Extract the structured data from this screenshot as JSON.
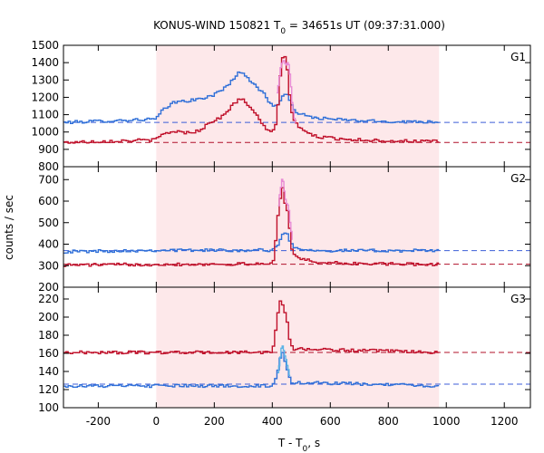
{
  "figure": {
    "title_main": "KONUS-WIND 150821 T",
    "title_sub": "0",
    "title_rest": " = 34651s UT (09:37:31.000)",
    "xlabel_main": "T - T",
    "xlabel_sub": "0",
    "xlabel_rest": ", s",
    "ylabel": "counts / sec"
  },
  "colors": {
    "highlight": "#fde8ea",
    "blue": "#2f6fd8",
    "red": "#c0102a",
    "cyan": "#5ab4e6",
    "pink": "#e88ad4",
    "dashed_blue": "#3c5ed8",
    "dashed_red": "#b0102a"
  },
  "chart_data": [
    {
      "type": "line",
      "panel": "G1",
      "x_range": [
        -320,
        1290
      ],
      "xticks": [
        -200,
        0,
        200,
        400,
        600,
        800,
        1000,
        1200
      ],
      "ylim": [
        800,
        1500
      ],
      "yticks": [
        800,
        900,
        1000,
        1100,
        1200,
        1300,
        1400,
        1500
      ],
      "highlight_interval": [
        0,
        975
      ],
      "grid": false,
      "background_levels": [
        {
          "color": "blue",
          "value": 1055
        },
        {
          "color": "red",
          "value": 940
        }
      ],
      "series": [
        {
          "color": "blue",
          "style": "step",
          "bin": 8,
          "x_start": -320,
          "x_end": 975,
          "anchors": [
            [
              -320,
              1055
            ],
            [
              0,
              1075
            ],
            [
              20,
              1120
            ],
            [
              60,
              1170
            ],
            [
              100,
              1180
            ],
            [
              140,
              1185
            ],
            [
              170,
              1200
            ],
            [
              200,
              1215
            ],
            [
              230,
              1245
            ],
            [
              260,
              1295
            ],
            [
              285,
              1340
            ],
            [
              300,
              1345
            ],
            [
              320,
              1305
            ],
            [
              345,
              1260
            ],
            [
              370,
              1225
            ],
            [
              390,
              1170
            ],
            [
              410,
              1150
            ],
            [
              425,
              1170
            ],
            [
              440,
              1220
            ],
            [
              455,
              1205
            ],
            [
              470,
              1140
            ],
            [
              490,
              1110
            ],
            [
              520,
              1090
            ],
            [
              560,
              1080
            ],
            [
              600,
              1075
            ],
            [
              700,
              1065
            ],
            [
              800,
              1060
            ],
            [
              975,
              1060
            ]
          ]
        },
        {
          "color": "red",
          "style": "step",
          "bin": 8,
          "x_start": -320,
          "x_end": 975,
          "anchors": [
            [
              -320,
              940
            ],
            [
              0,
              955
            ],
            [
              20,
              985
            ],
            [
              60,
              1005
            ],
            [
              110,
              995
            ],
            [
              150,
              1010
            ],
            [
              190,
              1060
            ],
            [
              230,
              1090
            ],
            [
              260,
              1150
            ],
            [
              285,
              1185
            ],
            [
              300,
              1185
            ],
            [
              330,
              1135
            ],
            [
              360,
              1060
            ],
            [
              380,
              1010
            ],
            [
              400,
              1000
            ],
            [
              415,
              1060
            ],
            [
              420,
              1150
            ],
            [
              425,
              1250
            ],
            [
              430,
              1360
            ],
            [
              435,
              1435
            ],
            [
              443,
              1440
            ],
            [
              450,
              1390
            ],
            [
              455,
              1300
            ],
            [
              460,
              1220
            ],
            [
              470,
              1090
            ],
            [
              485,
              1040
            ],
            [
              510,
              1005
            ],
            [
              550,
              975
            ],
            [
              600,
              965
            ],
            [
              700,
              955
            ],
            [
              800,
              950
            ],
            [
              975,
              945
            ]
          ]
        },
        {
          "color": "pink",
          "style": "step",
          "bin": 4,
          "x_start": 415,
          "x_end": 480,
          "anchors": [
            [
              415,
              1200
            ],
            [
              430,
              1380
            ],
            [
              440,
              1420
            ],
            [
              448,
              1380
            ],
            [
              455,
              1410
            ],
            [
              462,
              1320
            ],
            [
              470,
              1150
            ],
            [
              480,
              1050
            ]
          ]
        }
      ]
    },
    {
      "type": "line",
      "panel": "G2",
      "x_range": [
        -320,
        1290
      ],
      "xticks": [
        -200,
        0,
        200,
        400,
        600,
        800,
        1000,
        1200
      ],
      "ylim": [
        200,
        760
      ],
      "yticks": [
        200,
        300,
        400,
        500,
        600,
        700
      ],
      "highlight_interval": [
        0,
        975
      ],
      "grid": false,
      "background_levels": [
        {
          "color": "blue",
          "value": 370
        },
        {
          "color": "red",
          "value": 307
        }
      ],
      "series": [
        {
          "color": "blue",
          "style": "step",
          "bin": 8,
          "x_start": -320,
          "x_end": 975,
          "anchors": [
            [
              -320,
              365
            ],
            [
              0,
              372
            ],
            [
              400,
              372
            ],
            [
              415,
              390
            ],
            [
              425,
              405
            ],
            [
              435,
              440
            ],
            [
              445,
              460
            ],
            [
              455,
              440
            ],
            [
              465,
              400
            ],
            [
              480,
              382
            ],
            [
              520,
              375
            ],
            [
              600,
              370
            ],
            [
              975,
              370
            ]
          ]
        },
        {
          "color": "red",
          "style": "step",
          "bin": 8,
          "x_start": -320,
          "x_end": 975,
          "anchors": [
            [
              -320,
              303
            ],
            [
              0,
              306
            ],
            [
              390,
              308
            ],
            [
              405,
              320
            ],
            [
              412,
              420
            ],
            [
              418,
              520
            ],
            [
              424,
              580
            ],
            [
              430,
              630
            ],
            [
              436,
              665
            ],
            [
              442,
              620
            ],
            [
              448,
              550
            ],
            [
              454,
              560
            ],
            [
              460,
              470
            ],
            [
              468,
              380
            ],
            [
              480,
              345
            ],
            [
              500,
              330
            ],
            [
              550,
              318
            ],
            [
              650,
              310
            ],
            [
              975,
              306
            ]
          ]
        },
        {
          "color": "pink",
          "style": "step",
          "bin": 4,
          "x_start": 420,
          "x_end": 470,
          "anchors": [
            [
              420,
              560
            ],
            [
              428,
              650
            ],
            [
              436,
              715
            ],
            [
              442,
              650
            ],
            [
              448,
              590
            ],
            [
              456,
              580
            ],
            [
              462,
              500
            ],
            [
              470,
              420
            ]
          ]
        }
      ]
    },
    {
      "type": "line",
      "panel": "G3",
      "x_range": [
        -320,
        1290
      ],
      "xticks": [
        -200,
        0,
        200,
        400,
        600,
        800,
        1000,
        1200
      ],
      "ylim": [
        100,
        233
      ],
      "yticks": [
        100,
        120,
        140,
        160,
        180,
        200,
        220
      ],
      "highlight_interval": [
        0,
        975
      ],
      "grid": false,
      "background_levels": [
        {
          "color": "red",
          "value": 161
        },
        {
          "color": "blue",
          "value": 126
        }
      ],
      "series": [
        {
          "color": "red",
          "style": "step",
          "bin": 8,
          "x_start": -320,
          "x_end": 975,
          "anchors": [
            [
              -320,
              161
            ],
            [
              400,
              161
            ],
            [
              412,
              185
            ],
            [
              420,
              205
            ],
            [
              428,
              218
            ],
            [
              436,
              215
            ],
            [
              444,
              205
            ],
            [
              452,
              195
            ],
            [
              460,
              175
            ],
            [
              470,
              165
            ],
            [
              975,
              161
            ]
          ]
        },
        {
          "color": "blue",
          "style": "step",
          "bin": 8,
          "x_start": -320,
          "x_end": 975,
          "anchors": [
            [
              -320,
              124
            ],
            [
              400,
              124
            ],
            [
              415,
              135
            ],
            [
              425,
              150
            ],
            [
              435,
              162
            ],
            [
              445,
              150
            ],
            [
              455,
              140
            ],
            [
              465,
              128
            ],
            [
              975,
              124
            ]
          ]
        },
        {
          "color": "cyan",
          "style": "step",
          "bin": 4,
          "x_start": 418,
          "x_end": 462,
          "anchors": [
            [
              418,
              135
            ],
            [
              426,
              150
            ],
            [
              434,
              170
            ],
            [
              442,
              160
            ],
            [
              450,
              150
            ],
            [
              458,
              140
            ],
            [
              462,
              132
            ]
          ]
        }
      ]
    }
  ]
}
